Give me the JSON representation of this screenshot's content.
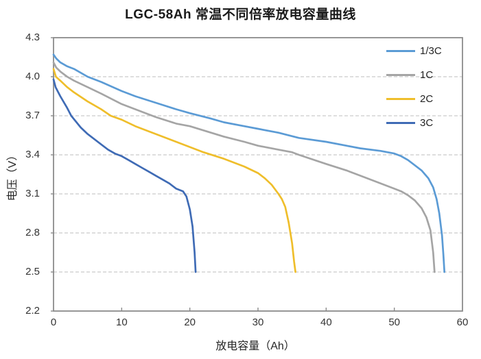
{
  "chart_data": {
    "type": "line",
    "title": "LGC-58Ah 常温不同倍率放电容量曲线",
    "xlabel": "放电容量（Ah）",
    "ylabel": "电压（V）",
    "xlim": [
      0,
      60
    ],
    "ylim": [
      2.2,
      4.3
    ],
    "x_tick_labels": [
      "0",
      "10",
      "20",
      "30",
      "40",
      "50",
      "60"
    ],
    "y_tick_labels": [
      "4.3",
      "4.0",
      "3.7",
      "3.4",
      "3.1",
      "2.8",
      "2.5",
      "2.2"
    ],
    "grid": "horizontal dashed gridlines at each 0.3 V step, none on top/bottom borders",
    "legend_position": "top-right inside plot",
    "series": [
      {
        "name": "1/3C",
        "color": "#5B9BD5",
        "points": [
          [
            0,
            4.17
          ],
          [
            0.4,
            4.14
          ],
          [
            1,
            4.11
          ],
          [
            2,
            4.08
          ],
          [
            3,
            4.06
          ],
          [
            5,
            4.0
          ],
          [
            7,
            3.96
          ],
          [
            10,
            3.89
          ],
          [
            12,
            3.85
          ],
          [
            15,
            3.8
          ],
          [
            18,
            3.75
          ],
          [
            20,
            3.72
          ],
          [
            23,
            3.68
          ],
          [
            25,
            3.65
          ],
          [
            28,
            3.62
          ],
          [
            30,
            3.6
          ],
          [
            33,
            3.57
          ],
          [
            36,
            3.53
          ],
          [
            40,
            3.5
          ],
          [
            43,
            3.47
          ],
          [
            45,
            3.45
          ],
          [
            48,
            3.43
          ],
          [
            50,
            3.41
          ],
          [
            51,
            3.39
          ],
          [
            52,
            3.36
          ],
          [
            53,
            3.32
          ],
          [
            54,
            3.28
          ],
          [
            55,
            3.22
          ],
          [
            55.7,
            3.15
          ],
          [
            56.2,
            3.06
          ],
          [
            56.6,
            2.95
          ],
          [
            57,
            2.78
          ],
          [
            57.2,
            2.63
          ],
          [
            57.35,
            2.5
          ]
        ]
      },
      {
        "name": "1C",
        "color": "#A5A5A5",
        "points": [
          [
            0,
            4.11
          ],
          [
            0.4,
            4.07
          ],
          [
            1,
            4.04
          ],
          [
            2,
            4.0
          ],
          [
            3,
            3.97
          ],
          [
            5,
            3.92
          ],
          [
            7,
            3.87
          ],
          [
            10,
            3.79
          ],
          [
            12,
            3.75
          ],
          [
            15,
            3.69
          ],
          [
            18,
            3.64
          ],
          [
            20,
            3.62
          ],
          [
            25,
            3.54
          ],
          [
            28,
            3.5
          ],
          [
            30,
            3.47
          ],
          [
            33,
            3.44
          ],
          [
            35,
            3.42
          ],
          [
            36,
            3.4
          ],
          [
            40,
            3.33
          ],
          [
            43,
            3.28
          ],
          [
            45,
            3.24
          ],
          [
            48,
            3.18
          ],
          [
            50,
            3.14
          ],
          [
            51,
            3.12
          ],
          [
            52,
            3.09
          ],
          [
            53,
            3.05
          ],
          [
            54,
            2.99
          ],
          [
            54.7,
            2.92
          ],
          [
            55.3,
            2.82
          ],
          [
            55.7,
            2.65
          ],
          [
            55.9,
            2.5
          ]
        ]
      },
      {
        "name": "2C",
        "color": "#EFBE2B",
        "points": [
          [
            0,
            4.06
          ],
          [
            0.35,
            4.0
          ],
          [
            1,
            3.97
          ],
          [
            2,
            3.92
          ],
          [
            3,
            3.88
          ],
          [
            5,
            3.81
          ],
          [
            7,
            3.75
          ],
          [
            8.4,
            3.7
          ],
          [
            10,
            3.67
          ],
          [
            12,
            3.62
          ],
          [
            15,
            3.56
          ],
          [
            18,
            3.5
          ],
          [
            20,
            3.46
          ],
          [
            22,
            3.42
          ],
          [
            25,
            3.37
          ],
          [
            28,
            3.31
          ],
          [
            30,
            3.26
          ],
          [
            31,
            3.22
          ],
          [
            32,
            3.17
          ],
          [
            33,
            3.1
          ],
          [
            33.5,
            3.06
          ],
          [
            34,
            3.0
          ],
          [
            34.5,
            2.88
          ],
          [
            35,
            2.72
          ],
          [
            35.3,
            2.58
          ],
          [
            35.5,
            2.5
          ]
        ]
      },
      {
        "name": "3C",
        "color": "#3F6BB5",
        "points": [
          [
            0,
            3.98
          ],
          [
            0.3,
            3.92
          ],
          [
            1,
            3.85
          ],
          [
            2,
            3.76
          ],
          [
            2.6,
            3.7
          ],
          [
            4,
            3.61
          ],
          [
            5,
            3.56
          ],
          [
            6,
            3.52
          ],
          [
            7,
            3.48
          ],
          [
            8,
            3.44
          ],
          [
            9,
            3.41
          ],
          [
            10,
            3.39
          ],
          [
            11,
            3.36
          ],
          [
            12,
            3.33
          ],
          [
            13,
            3.3
          ],
          [
            14,
            3.27
          ],
          [
            15,
            3.24
          ],
          [
            16,
            3.21
          ],
          [
            17,
            3.18
          ],
          [
            18,
            3.14
          ],
          [
            19,
            3.12
          ],
          [
            19.5,
            3.08
          ],
          [
            20,
            2.98
          ],
          [
            20.4,
            2.85
          ],
          [
            20.7,
            2.65
          ],
          [
            20.85,
            2.5
          ]
        ]
      }
    ]
  },
  "colors": {
    "plot_border": "#8A8A8A",
    "gridline": "#C9C9C9",
    "tick_mark": "#8A8A8A",
    "tick_label": "#333333",
    "title_text": "#1A1A1A"
  }
}
